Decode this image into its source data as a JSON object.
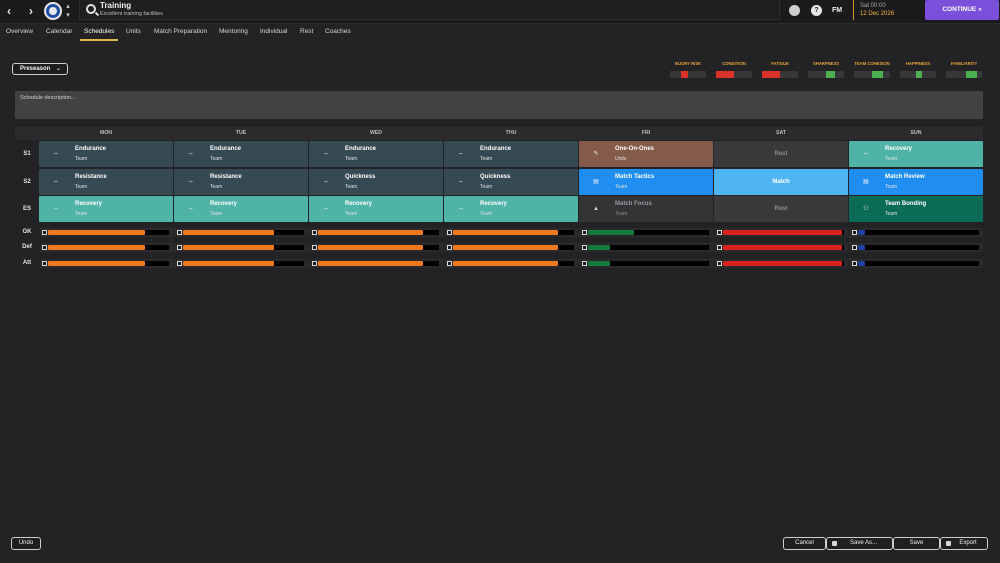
{
  "header": {
    "title": "Training",
    "subtitle": "Excellent training facilities",
    "nav_back": "‹",
    "nav_forward": "›",
    "crest_toggle_up": "▴",
    "crest_toggle_down": "▾",
    "help_icon": "?",
    "fm_label": "FM",
    "time": "Sat 00:00",
    "date": "12 Dec 2026",
    "continue_label": "CONTINUE »"
  },
  "tabs": [
    "Overview",
    "Calendar",
    "Schedules",
    "Units",
    "Match Preparation",
    "Mentoring",
    "Individual",
    "Rest",
    "Coaches"
  ],
  "active_tab": "Schedules",
  "schedule_select": {
    "value": "Preseason",
    "chevron": "⌄"
  },
  "metrics": [
    {
      "label": "INJURY RISK",
      "fill_from": 0.3,
      "fill_to": 0.5,
      "color": "#d8322b"
    },
    {
      "label": "CONDITION",
      "fill_from": 0.0,
      "fill_to": 0.5,
      "color": "#d8322b"
    },
    {
      "label": "FATIGUE",
      "fill_from": 0.0,
      "fill_to": 0.5,
      "color": "#d8322b"
    },
    {
      "label": "SHARPNESS",
      "fill_from": 0.5,
      "fill_to": 0.75,
      "color": "#4caf50"
    },
    {
      "label": "TEAM COHESION",
      "fill_from": 0.5,
      "fill_to": 0.8,
      "color": "#4caf50"
    },
    {
      "label": "HAPPINESS",
      "fill_from": 0.45,
      "fill_to": 0.6,
      "color": "#4caf50"
    },
    {
      "label": "FAMILIARITY",
      "fill_from": 0.55,
      "fill_to": 0.85,
      "color": "#4caf50"
    }
  ],
  "description_placeholder": "Schedule description...",
  "days": [
    "MON",
    "TUE",
    "WED",
    "THU",
    "FRI",
    "SAT",
    "SUN"
  ],
  "session_rows": [
    {
      "label": "S1",
      "cells": [
        {
          "title": "Endurance",
          "sub": "Team",
          "bg": "#354a52",
          "icon": "⇔",
          "style": "normal"
        },
        {
          "title": "Endurance",
          "sub": "Team",
          "bg": "#354a52",
          "icon": "⇔",
          "style": "normal"
        },
        {
          "title": "Endurance",
          "sub": "Team",
          "bg": "#354a52",
          "icon": "⇔",
          "style": "normal"
        },
        {
          "title": "Endurance",
          "sub": "Team",
          "bg": "#354a52",
          "icon": "⇔",
          "style": "normal"
        },
        {
          "title": "One-On-Ones",
          "sub": "Units",
          "bg": "#845a4a",
          "icon": "✎",
          "style": "normal"
        },
        {
          "title": "Rest",
          "sub": "",
          "bg": "#3a3a3d",
          "icon": "",
          "style": "muted-center"
        },
        {
          "title": "Recovery",
          "sub": "Team",
          "bg": "#4fb3a8",
          "icon": "⇔",
          "style": "normal"
        }
      ]
    },
    {
      "label": "S2",
      "cells": [
        {
          "title": "Resistance",
          "sub": "Team",
          "bg": "#354a52",
          "icon": "⇔",
          "style": "normal"
        },
        {
          "title": "Resistance",
          "sub": "Team",
          "bg": "#354a52",
          "icon": "⇔",
          "style": "normal"
        },
        {
          "title": "Quickness",
          "sub": "Team",
          "bg": "#354a52",
          "icon": "⇔",
          "style": "normal"
        },
        {
          "title": "Quickness",
          "sub": "Team",
          "bg": "#354a52",
          "icon": "⇔",
          "style": "normal"
        },
        {
          "title": "Match Tactics",
          "sub": "Team",
          "bg": "#1f8ef0",
          "icon": "▤",
          "style": "normal"
        },
        {
          "title": "Match",
          "sub": "",
          "bg": "#4fb4f2",
          "icon": "",
          "style": "center"
        },
        {
          "title": "Match Review",
          "sub": "Team",
          "bg": "#1f8ef0",
          "icon": "▤",
          "style": "normal"
        }
      ]
    },
    {
      "label": "ES",
      "cells": [
        {
          "title": "Recovery",
          "sub": "Team",
          "bg": "#4fb3a8",
          "icon": "⇔",
          "style": "normal"
        },
        {
          "title": "Recovery",
          "sub": "Team",
          "bg": "#4fb3a8",
          "icon": "⇔",
          "style": "normal"
        },
        {
          "title": "Recovery",
          "sub": "Team",
          "bg": "#4fb3a8",
          "icon": "⇔",
          "style": "normal"
        },
        {
          "title": "Recovery",
          "sub": "Team",
          "bg": "#4fb3a8",
          "icon": "⇔",
          "style": "normal"
        },
        {
          "title": "Match Focus",
          "sub": "Team",
          "bg": "#343437",
          "icon": "▲",
          "style": "focus"
        },
        {
          "title": "Rest",
          "sub": "",
          "bg": "#3a3a3d",
          "icon": "",
          "style": "muted-center"
        },
        {
          "title": "Team Bonding",
          "sub": "Team",
          "bg": "#0a6b57",
          "icon": "⚇",
          "style": "normal"
        }
      ]
    }
  ],
  "load_rows": [
    {
      "label": "GK",
      "values": [
        {
          "level": 0.8,
          "color": "#f07a1f"
        },
        {
          "level": 0.75,
          "color": "#f07a1f"
        },
        {
          "level": 0.87,
          "color": "#f07a1f"
        },
        {
          "level": 0.87,
          "color": "#f07a1f"
        },
        {
          "level": 0.38,
          "color": "#127a3e"
        },
        {
          "level": 0.98,
          "color": "#d9231f"
        },
        {
          "level": 0.06,
          "color": "#1f3fa3"
        }
      ]
    },
    {
      "label": "Def",
      "values": [
        {
          "level": 0.8,
          "color": "#f07a1f"
        },
        {
          "level": 0.75,
          "color": "#f07a1f"
        },
        {
          "level": 0.87,
          "color": "#f07a1f"
        },
        {
          "level": 0.87,
          "color": "#f07a1f"
        },
        {
          "level": 0.18,
          "color": "#127a3e"
        },
        {
          "level": 0.98,
          "color": "#d9231f"
        },
        {
          "level": 0.06,
          "color": "#1f3fa3"
        }
      ]
    },
    {
      "label": "Att",
      "values": [
        {
          "level": 0.8,
          "color": "#f07a1f"
        },
        {
          "level": 0.75,
          "color": "#f07a1f"
        },
        {
          "level": 0.87,
          "color": "#f07a1f"
        },
        {
          "level": 0.87,
          "color": "#f07a1f"
        },
        {
          "level": 0.18,
          "color": "#127a3e"
        },
        {
          "level": 0.98,
          "color": "#d9231f"
        },
        {
          "level": 0.06,
          "color": "#1f3fa3"
        }
      ]
    }
  ],
  "buttons": {
    "undo": "Undo",
    "cancel": "Cancel",
    "save_as": "Save As...",
    "save": "Save",
    "export": "Export"
  }
}
